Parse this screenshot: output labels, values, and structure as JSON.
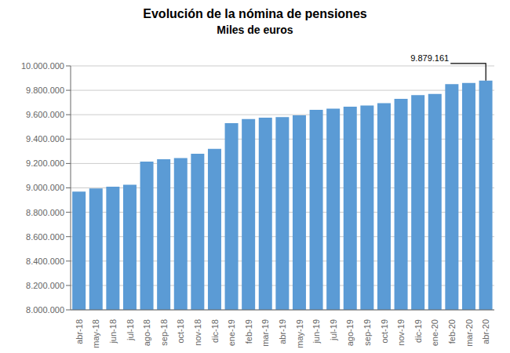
{
  "chart_data": {
    "type": "bar",
    "title": "Evolución de la nómina de pensiones",
    "subtitle": "Miles de euros",
    "categories": [
      "abr-18",
      "may-18",
      "jun-18",
      "jul-18",
      "ago-18",
      "sep-18",
      "oct-18",
      "nov-18",
      "dic-18",
      "ene-19",
      "feb-19",
      "mar-19",
      "abr-19",
      "may-19",
      "jun-19",
      "jul-19",
      "ago-19",
      "sep-19",
      "oct-19",
      "nov-19",
      "dic-19",
      "ene-20",
      "feb-20",
      "mar-20",
      "abr-20"
    ],
    "values": [
      8970000,
      8995000,
      9010000,
      9025000,
      9215000,
      9235000,
      9245000,
      9280000,
      9320000,
      9530000,
      9565000,
      9575000,
      9580000,
      9595000,
      9640000,
      9650000,
      9665000,
      9675000,
      9695000,
      9730000,
      9760000,
      9770000,
      9850000,
      9860000,
      9879161
    ],
    "color": "#5b9bd5",
    "ylim": [
      8000000,
      10000000
    ],
    "yticks": [
      {
        "value": 8000000,
        "label": "8.000.000"
      },
      {
        "value": 8200000,
        "label": "8.200.000"
      },
      {
        "value": 8400000,
        "label": "8.400.000"
      },
      {
        "value": 8600000,
        "label": "8.600.000"
      },
      {
        "value": 8800000,
        "label": "8.800.000"
      },
      {
        "value": 9000000,
        "label": "9.000.000"
      },
      {
        "value": 9200000,
        "label": "9.200.000"
      },
      {
        "value": 9400000,
        "label": "9.400.000"
      },
      {
        "value": 9600000,
        "label": "9.600.000"
      },
      {
        "value": 9800000,
        "label": "9.800.000"
      },
      {
        "value": 10000000,
        "label": "10.000.000"
      }
    ],
    "grid": true,
    "annotations": [
      {
        "text": "9.879.161",
        "category": "abr-20",
        "value": 9879161
      }
    ]
  }
}
